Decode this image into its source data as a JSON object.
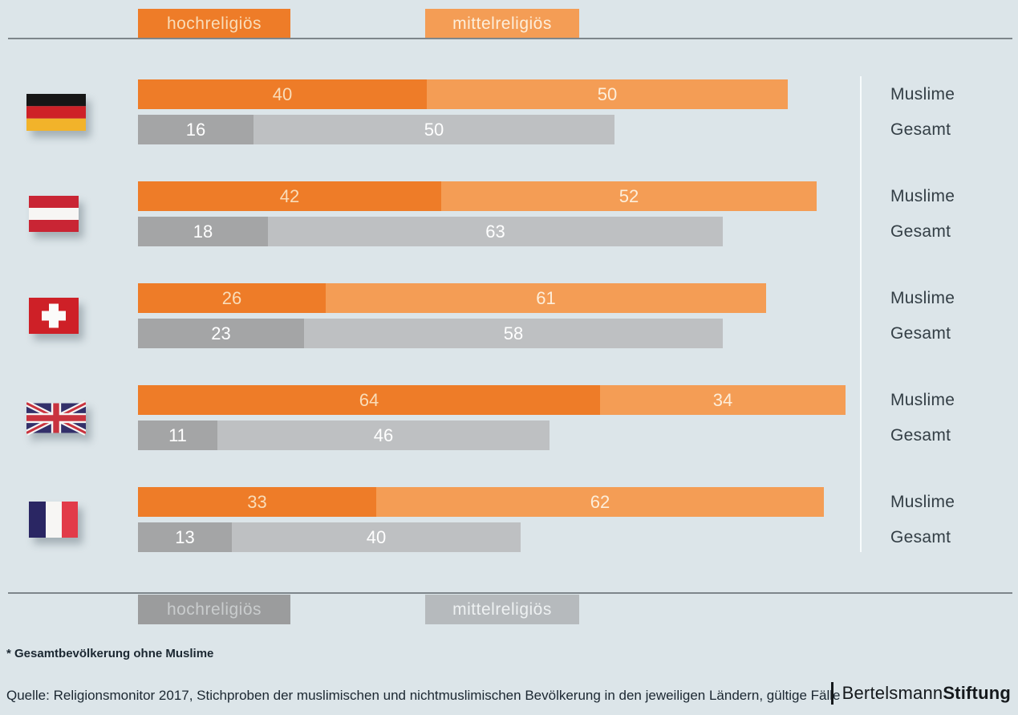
{
  "background_color": "#dce5e9",
  "legend_top": {
    "items": [
      {
        "label": "hochreligiös",
        "color": "#ee7c28",
        "text_color": "#f9ddb9"
      },
      {
        "label": "mittelreligiös",
        "color": "#f49d55",
        "text_color": "#fdeeda"
      }
    ]
  },
  "legend_bottom": {
    "items": [
      {
        "label": "hochreligiös",
        "color": "#9b9c9d",
        "text_color": "#c9cccd"
      },
      {
        "label": "mittelreligiös",
        "color": "#b6babd",
        "text_color": "#eef1f2"
      }
    ]
  },
  "row_labels": {
    "muslime": "Muslime",
    "gesamt": "Gesamt"
  },
  "chart_data": {
    "type": "bar",
    "orientation": "horizontal",
    "unit": "percent",
    "xlim": [
      0,
      100
    ],
    "categories": [
      "Germany",
      "Austria",
      "Switzerland",
      "United Kingdom",
      "France"
    ],
    "flags": [
      "germany",
      "austria",
      "switzerland",
      "uk",
      "france"
    ],
    "groups": [
      "Muslime",
      "Gesamt"
    ],
    "series": [
      {
        "name": "Muslime hochreligiös",
        "color": "#ee7c28",
        "value_color": "#f9ddb9",
        "values": [
          40,
          42,
          26,
          64,
          33
        ]
      },
      {
        "name": "Muslime mittelreligiös",
        "color": "#f49d55",
        "value_color": "#fdeeda",
        "values": [
          50,
          52,
          61,
          34,
          62
        ]
      },
      {
        "name": "Gesamt hochreligiös",
        "color": "#a4a5a6",
        "value_color": "#ffffff",
        "values": [
          16,
          18,
          23,
          11,
          13
        ]
      },
      {
        "name": "Gesamt mittelreligiös",
        "color": "#bec0c2",
        "value_color": "#ffffff",
        "values": [
          50,
          63,
          58,
          46,
          40
        ]
      }
    ],
    "legend_top_labels": [
      "hochreligiös",
      "mittelreligiös"
    ],
    "legend_bottom_labels": [
      "hochreligiös",
      "mittelreligiös"
    ],
    "legend_position": "top-and-bottom",
    "grid": false
  },
  "footnote": "* Gesamtbevölkerung ohne Muslime",
  "source": "Quelle: Religionsmonitor 2017, Stichproben der muslimischen und nichtmuslimischen Bevölkerung in den jeweiligen Ländern, gültige Fälle",
  "logo": {
    "name": "Bertelsmann",
    "suffix": "Stiftung"
  }
}
